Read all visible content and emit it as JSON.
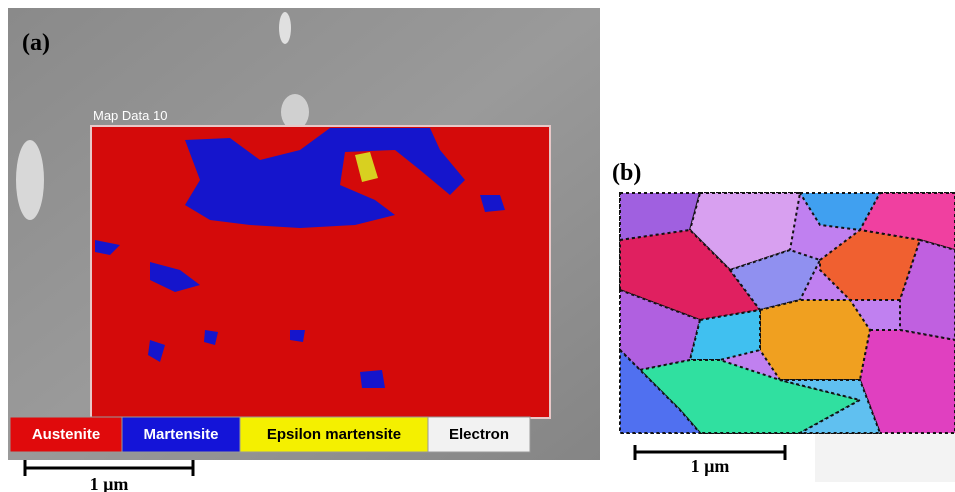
{
  "panel_a": {
    "label": "(a)",
    "map_title": "Map Data 10",
    "legend": [
      {
        "label": "Austenite",
        "color": "#e00a0c",
        "text_color": "#ffffff"
      },
      {
        "label": "Martensite",
        "color": "#1414d8",
        "text_color": "#ffffff"
      },
      {
        "label": "Epsilon martensite",
        "color": "#f4f000",
        "text_color": "#000000"
      },
      {
        "label": "Electron",
        "color": "#f2f2f2",
        "text_color": "#000000"
      }
    ],
    "scale_bar": "1 µm"
  },
  "panel_b": {
    "label": "(b)",
    "scale_bar": "1 µm"
  }
}
